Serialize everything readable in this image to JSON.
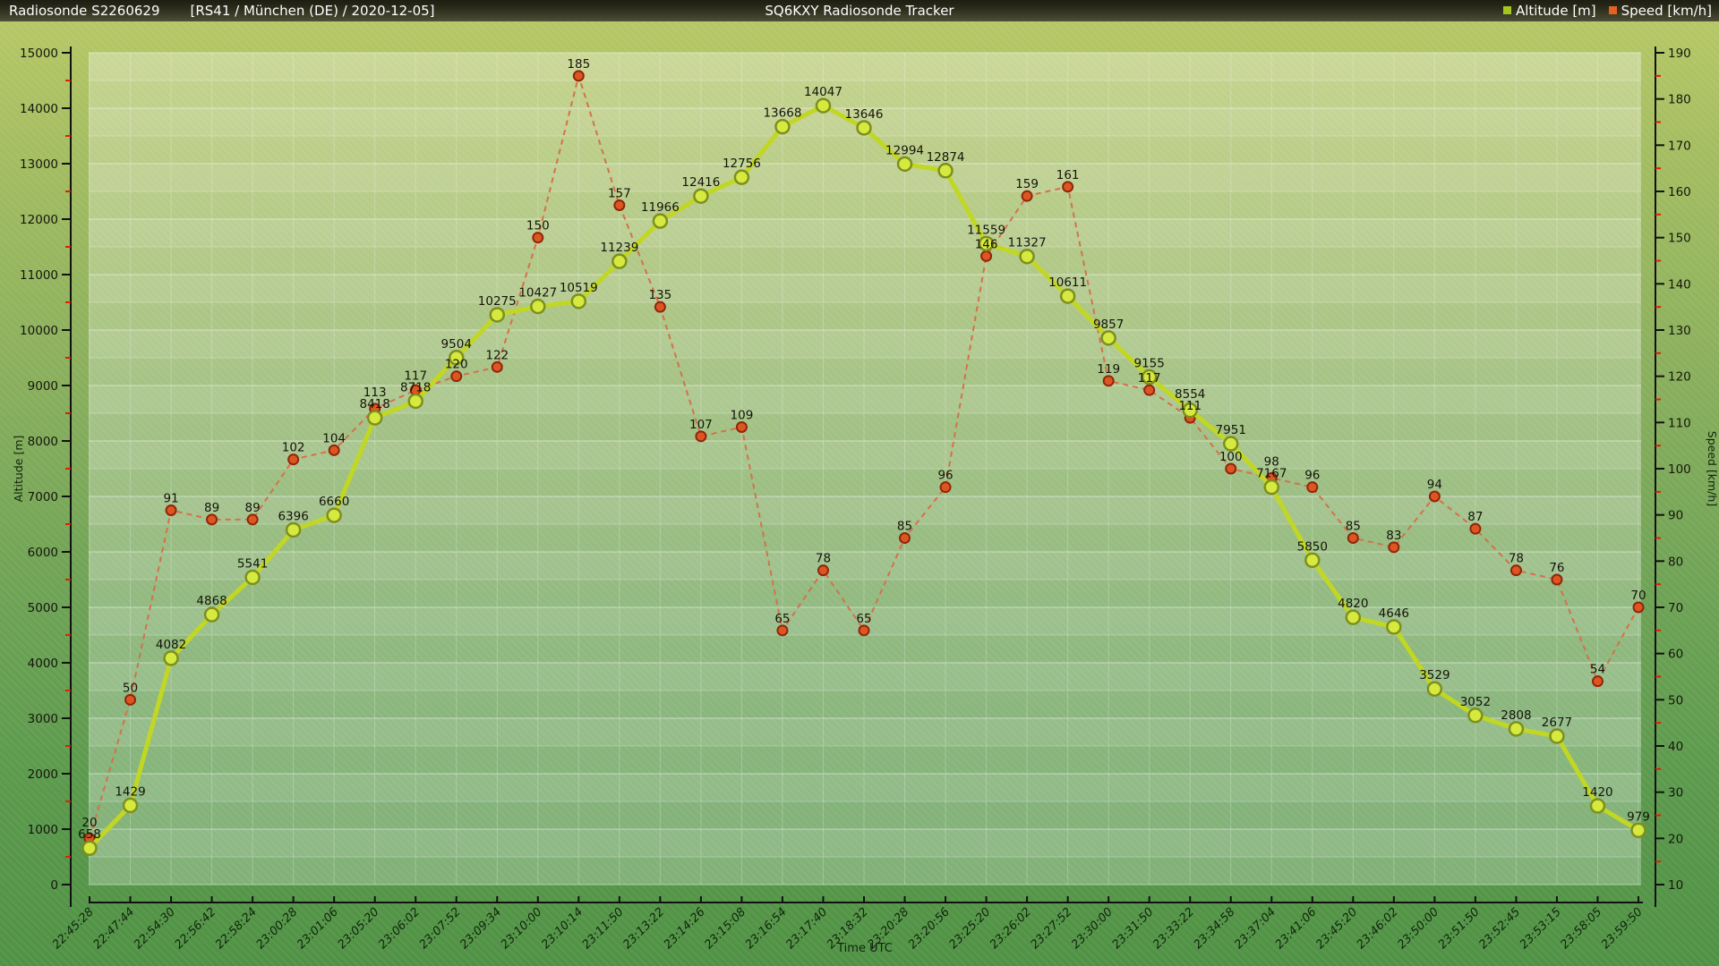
{
  "header": {
    "station": "Radiosonde S2260629",
    "flight_info": "[RS41 / München (DE) / 2020-12-05]",
    "app_title": "SQ6KXY Radiosonde Tracker"
  },
  "legend": {
    "altitude_label": "Altitude [m]",
    "speed_label": "Speed [km/h]"
  },
  "colors": {
    "altitude_line": "#c1d723",
    "altitude_marker_fill": "#d6e93e",
    "altitude_marker_stroke": "#7d8f1e",
    "altitude_legend_swatch": "#a5c61e",
    "speed_line": "#d4714a",
    "speed_marker_fill": "#dd5622",
    "speed_marker_stroke": "#8e260b",
    "speed_legend_swatch": "#e2631f",
    "axis_line": "#111111",
    "minor_tick": "#dd2200"
  },
  "chart_data": {
    "type": "line",
    "title": "SQ6KXY Radiosonde Tracker",
    "xlabel": "Time UTC",
    "grid": true,
    "legend_position": "top-right",
    "x": [
      "22:45:28",
      "22:47:44",
      "22:54:30",
      "22:56:42",
      "22:58:24",
      "23:00:28",
      "23:01:06",
      "23:05:20",
      "23:06:02",
      "23:07:52",
      "23:09:34",
      "23:10:00",
      "23:10:14",
      "23:11:50",
      "23:13:22",
      "23:14:26",
      "23:15:08",
      "23:16:54",
      "23:17:40",
      "23:18:32",
      "23:20:28",
      "23:20:56",
      "23:25:20",
      "23:26:02",
      "23:27:52",
      "23:30:00",
      "23:31:50",
      "23:33:22",
      "23:34:58",
      "23:37:04",
      "23:41:06",
      "23:45:20",
      "23:46:02",
      "23:50:00",
      "23:51:50",
      "23:52:45",
      "23:53:15",
      "23:58:05",
      "23:59:50"
    ],
    "series": [
      {
        "name": "Altitude [m]",
        "axis": "left",
        "values": [
          658,
          1429,
          4082,
          4868,
          5541,
          6396,
          6660,
          8418,
          8718,
          9504,
          10275,
          10427,
          10519,
          11239,
          11966,
          12416,
          12756,
          13668,
          14047,
          13646,
          12994,
          12874,
          11559,
          11327,
          10611,
          9857,
          9155,
          8554,
          7951,
          7167,
          5850,
          4820,
          4646,
          3529,
          3052,
          2808,
          2677,
          1420,
          979
        ]
      },
      {
        "name": "Speed [km/h]",
        "axis": "right",
        "values": [
          20,
          50,
          91,
          89,
          89,
          102,
          104,
          113,
          117,
          120,
          122,
          150,
          185,
          157,
          135,
          107,
          109,
          65,
          78,
          65,
          85,
          96,
          146,
          159,
          161,
          119,
          117,
          111,
          100,
          98,
          96,
          85,
          83,
          94,
          87,
          78,
          76,
          54,
          70
        ]
      }
    ],
    "left_axis": {
      "label": "Altitude [m]",
      "min": 0,
      "max": 15000,
      "major_step": 1000,
      "minor_step": 500
    },
    "right_axis": {
      "label": "Speed [km/h]",
      "min": 10,
      "max": 190,
      "major_step": 10,
      "minor_step": 5
    }
  }
}
